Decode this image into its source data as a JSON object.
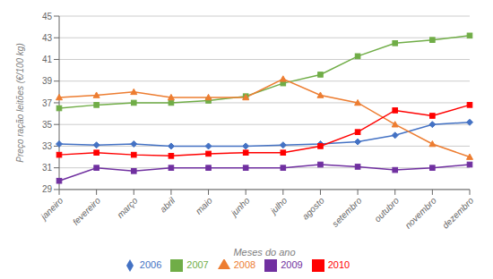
{
  "chart_data": {
    "type": "line",
    "xlabel": "Meses do ano",
    "ylabel": "Preço ração leitões (€/100 kg)",
    "categories": [
      "janeiro",
      "fevereiro",
      "março",
      "abril",
      "maio",
      "junho",
      "julho",
      "agosto",
      "setembro",
      "outubro",
      "novembro",
      "dezembro"
    ],
    "series": [
      {
        "name": "2006",
        "color": "#4472C4",
        "marker": "diamond",
        "values": [
          33.2,
          33.1,
          33.2,
          33.0,
          33.0,
          33.0,
          33.1,
          33.2,
          33.4,
          34.0,
          35.0,
          35.2
        ]
      },
      {
        "name": "2007",
        "color": "#70AD47",
        "marker": "square",
        "values": [
          36.5,
          36.8,
          37.0,
          37.0,
          37.2,
          37.6,
          38.8,
          39.6,
          41.3,
          42.5,
          42.8,
          43.2
        ]
      },
      {
        "name": "2008",
        "color": "#ED7D31",
        "marker": "triangle",
        "values": [
          37.5,
          37.7,
          38.0,
          37.5,
          37.5,
          37.5,
          39.2,
          37.7,
          37.0,
          35.0,
          33.2,
          32.0
        ]
      },
      {
        "name": "2009",
        "color": "#7030A0",
        "marker": "square",
        "values": [
          29.8,
          31.0,
          30.7,
          31.0,
          31.0,
          31.0,
          31.0,
          31.3,
          31.1,
          30.8,
          31.0,
          31.3
        ]
      },
      {
        "name": "2010",
        "color": "#FF0000",
        "marker": "square",
        "values": [
          32.2,
          32.4,
          32.2,
          32.1,
          32.3,
          32.4,
          32.4,
          33.0,
          34.3,
          36.3,
          35.8,
          36.8
        ]
      }
    ],
    "ylim": [
      29,
      45
    ],
    "yticks": [
      29,
      31,
      33,
      35,
      37,
      39,
      41,
      43,
      45
    ],
    "grid": true,
    "legend": "bottom"
  }
}
